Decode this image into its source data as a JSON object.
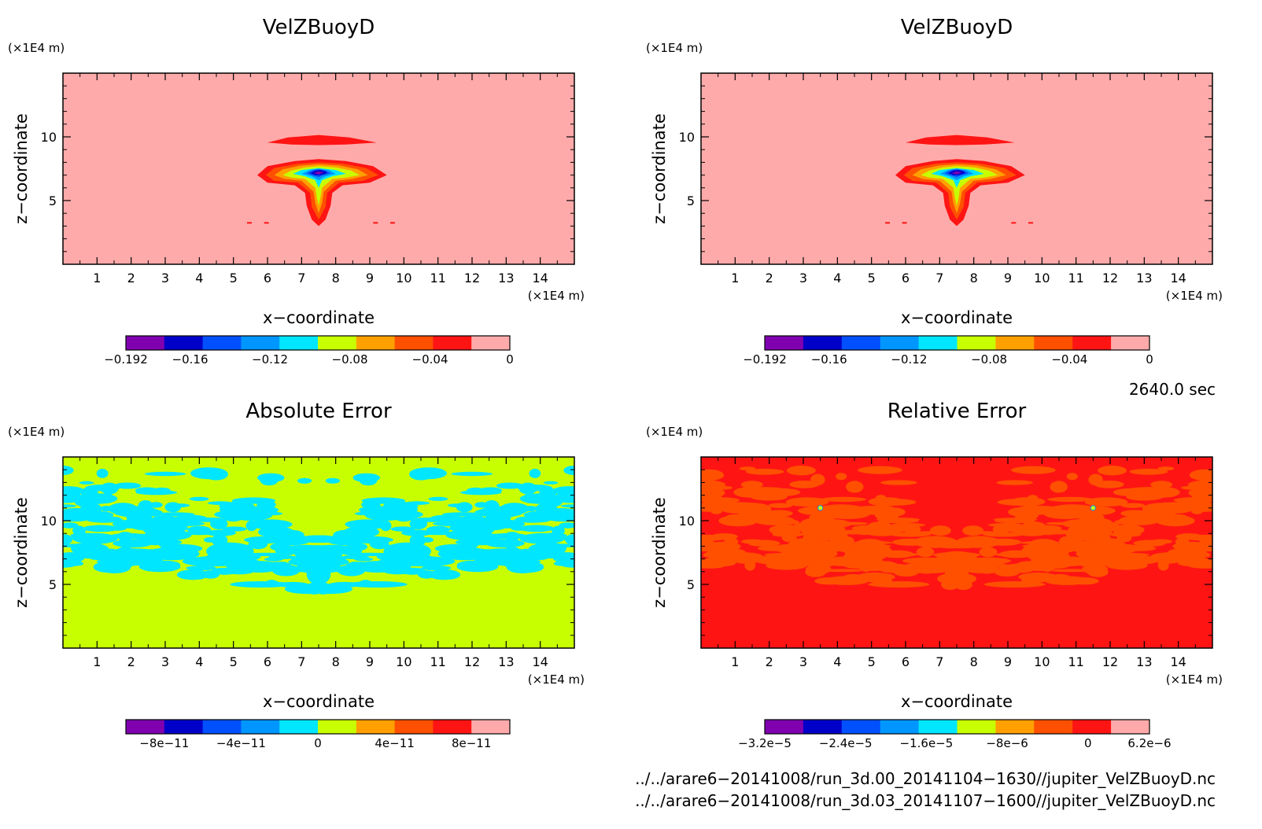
{
  "chart_data": [
    {
      "type": "heatmap",
      "title": "VelZBuoyD",
      "xlabel": "x−coordinate",
      "ylabel": "z−coordinate",
      "x_unit": "(×1E4 m)",
      "y_unit": "(×1E4 m)",
      "xlim": [
        0,
        15
      ],
      "ylim": [
        0,
        15
      ],
      "x_ticks": [
        "1",
        "2",
        "3",
        "4",
        "5",
        "6",
        "7",
        "8",
        "9",
        "10",
        "11",
        "12",
        "13",
        "14"
      ],
      "y_ticks": [
        "5",
        "10"
      ],
      "background_color": "#ffaaaa",
      "colorbar": {
        "colors": [
          "#8000b0",
          "#0000c8",
          "#0050ff",
          "#0096ff",
          "#00e6ff",
          "#c8ff00",
          "#ffa000",
          "#ff5000",
          "#ff1414",
          "#ffaaaa"
        ],
        "tick_labels": [
          "−0.192",
          "−0.16",
          "−0.12",
          "−0.08",
          "−0.04",
          "0"
        ]
      }
    },
    {
      "type": "heatmap",
      "title": "VelZBuoyD",
      "xlabel": "x−coordinate",
      "ylabel": "z−coordinate",
      "x_unit": "(×1E4 m)",
      "y_unit": "(×1E4 m)",
      "xlim": [
        0,
        15
      ],
      "ylim": [
        0,
        15
      ],
      "x_ticks": [
        "1",
        "2",
        "3",
        "4",
        "5",
        "6",
        "7",
        "8",
        "9",
        "10",
        "11",
        "12",
        "13",
        "14"
      ],
      "y_ticks": [
        "5",
        "10"
      ],
      "background_color": "#ffaaaa",
      "colorbar": {
        "colors": [
          "#8000b0",
          "#0000c8",
          "#0050ff",
          "#0096ff",
          "#00e6ff",
          "#c8ff00",
          "#ffa000",
          "#ff5000",
          "#ff1414",
          "#ffaaaa"
        ],
        "tick_labels": [
          "−0.192",
          "−0.16",
          "−0.12",
          "−0.08",
          "−0.04",
          "0"
        ]
      }
    },
    {
      "type": "heatmap",
      "title": "Absolute Error",
      "xlabel": "x−coordinate",
      "ylabel": "z−coordinate",
      "x_unit": "(×1E4 m)",
      "y_unit": "(×1E4 m)",
      "xlim": [
        0,
        15
      ],
      "ylim": [
        0,
        15
      ],
      "x_ticks": [
        "1",
        "2",
        "3",
        "4",
        "5",
        "6",
        "7",
        "8",
        "9",
        "10",
        "11",
        "12",
        "13",
        "14"
      ],
      "y_ticks": [
        "5",
        "10"
      ],
      "background_color": "#c8ff00",
      "colorbar": {
        "colors": [
          "#8000b0",
          "#0000c8",
          "#0050ff",
          "#0096ff",
          "#00e6ff",
          "#c8ff00",
          "#ffa000",
          "#ff5000",
          "#ff1414",
          "#ffaaaa"
        ],
        "tick_labels": [
          "−8e−11",
          "−4e−11",
          "0",
          "4e−11",
          "8e−11"
        ]
      }
    },
    {
      "type": "heatmap",
      "title": "Relative Error",
      "xlabel": "x−coordinate",
      "ylabel": "z−coordinate",
      "x_unit": "(×1E4 m)",
      "y_unit": "(×1E4 m)",
      "xlim": [
        0,
        15
      ],
      "ylim": [
        0,
        15
      ],
      "x_ticks": [
        "1",
        "2",
        "3",
        "4",
        "5",
        "6",
        "7",
        "8",
        "9",
        "10",
        "11",
        "12",
        "13",
        "14"
      ],
      "y_ticks": [
        "5",
        "10"
      ],
      "background_color": "#ff1414",
      "colorbar": {
        "colors": [
          "#8000b0",
          "#0000c8",
          "#0050ff",
          "#0096ff",
          "#00e6ff",
          "#c8ff00",
          "#ffa000",
          "#ff5000",
          "#ff1414",
          "#ffaaaa"
        ],
        "tick_labels": [
          "−3.2e−5",
          "−2.4e−5",
          "−1.6e−5",
          "−8e−6",
          "0",
          "6.2e−6"
        ]
      }
    }
  ],
  "time_label": "2640.0 sec",
  "file_paths": [
    "../../arare6−20141008/run_3d.00_20141104−1630//jupiter_VelZBuoyD.nc",
    "../../arare6−20141008/run_3d.03_20141107−1600//jupiter_VelZBuoyD.nc"
  ]
}
